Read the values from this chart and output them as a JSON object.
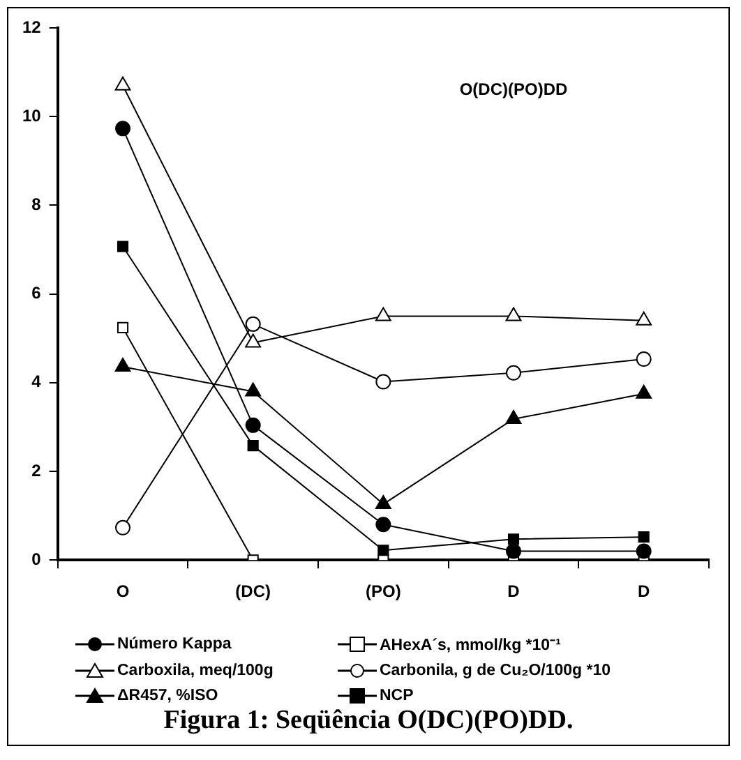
{
  "chart_data": {
    "type": "line",
    "title": "Figura 1: Seqüência O(DC)(PO)DD.",
    "annotations": [
      "O(DC)(PO)DD"
    ],
    "categories": [
      "O",
      "(DC)",
      "(PO)",
      "D",
      "D"
    ],
    "ylim": [
      0,
      12
    ],
    "yticks": [
      0,
      2,
      4,
      6,
      8,
      10,
      12
    ],
    "grid": false,
    "legend": "bottom",
    "series": [
      {
        "name": "Número Kappa",
        "color": "#000000",
        "marker": "circle",
        "values": [
          9.73,
          3.04,
          0.8,
          0.2,
          0.2
        ]
      },
      {
        "name": "AHexA´s, mmol/kg *10⁻¹",
        "color": "#000000",
        "marker": "square",
        "colors": [
          "#ffffff",
          "#ffffff",
          "#ffffff",
          "#ffffff",
          "#ffffff"
        ],
        "values": [
          5.24,
          0,
          0,
          0,
          0
        ]
      },
      {
        "name": "Carboxila, meq/100g",
        "color": "#000000",
        "marker": "triangle",
        "colors": [
          "#ffffff",
          "#ffffff",
          "#ffffff",
          "#ffffff",
          "#ffffff"
        ],
        "values": [
          10.7,
          4.9,
          5.5,
          5.5,
          5.4
        ]
      },
      {
        "name": "Carbonila, g de Cu₂O/100g *10",
        "color": "#000000",
        "marker": "circle",
        "colors": [
          "#ffffff",
          "#ffffff",
          "#ffffff",
          "#ffffff",
          "#ffffff"
        ],
        "values": [
          0.73,
          5.32,
          4.02,
          4.22,
          4.53
        ]
      },
      {
        "name": "ΔR457, %ISO",
        "color": "#000000",
        "marker": "triangle",
        "values": [
          4.36,
          3.8,
          1.26,
          3.18,
          3.75
        ]
      },
      {
        "name": "NCP",
        "color": "#000000",
        "marker": "square",
        "values": [
          7.07,
          2.58,
          0.22,
          0.47,
          0.52
        ]
      }
    ]
  }
}
